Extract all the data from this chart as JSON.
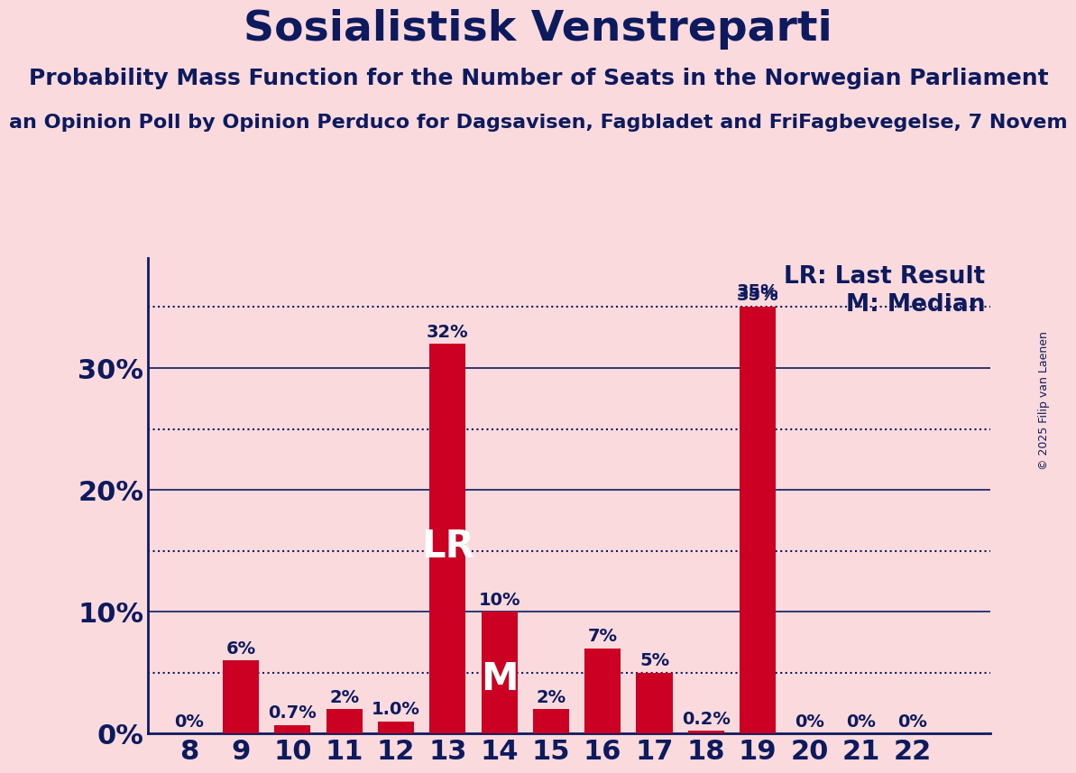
{
  "title": "Sosialistisk Venstreparti",
  "subtitle1": "Probability Mass Function for the Number of Seats in the Norwegian Parliament",
  "subtitle2": "an Opinion Poll by Opinion Perduco for Dagsavisen, Fagbladet and FriFagbevegelse, 7 Novem",
  "copyright": "© 2025 Filip van Laenen",
  "seats": [
    8,
    9,
    10,
    11,
    12,
    13,
    14,
    15,
    16,
    17,
    18,
    19,
    20,
    21,
    22
  ],
  "probabilities": [
    0.0,
    6.0,
    0.7,
    2.0,
    1.0,
    32.0,
    10.0,
    2.0,
    7.0,
    5.0,
    0.2,
    35.0,
    0.0,
    0.0,
    0.0
  ],
  "bar_color": "#CC0022",
  "background_color": "#FADADD",
  "title_color": "#0D1B5E",
  "LR_seat": 13,
  "M_seat": 14,
  "LR_label": "LR",
  "M_label": "M",
  "legend_LR": "LR: Last Result",
  "legend_M": "M: Median",
  "dotted_line_y": 35.0,
  "ylim": [
    0,
    39
  ],
  "solid_yticks": [
    0,
    10,
    20,
    30
  ],
  "dotted_yticks": [
    5,
    15,
    25,
    35
  ],
  "solid_ytick_labels": [
    "0%",
    "10%",
    "20%",
    "30%"
  ],
  "bar_label_fontsize": 14,
  "title_fontsize": 34,
  "subtitle1_fontsize": 18,
  "subtitle2_fontsize": 16,
  "axis_label_fontsize": 22,
  "legend_fontsize": 19,
  "inside_label_fontsize": 30,
  "copyright_fontsize": 9
}
